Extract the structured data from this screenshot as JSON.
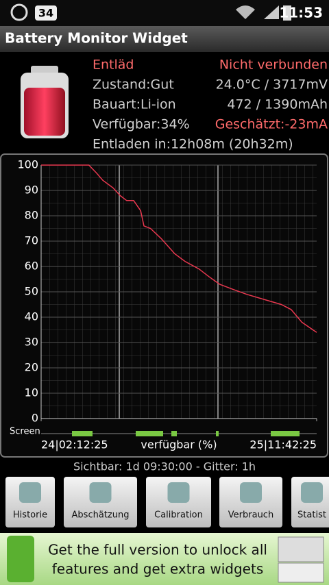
{
  "status_bar": {
    "badge": "34",
    "time": "11:53"
  },
  "app_bar": {
    "title": "Battery Monitor Widget"
  },
  "info": {
    "rows": [
      [
        "Entläd",
        "Nicht verbunden"
      ],
      [
        "Zustand:Gut",
        "24.0°C / 3717mV"
      ],
      [
        "Bauart:Li-ion",
        "472 / 1390mAh"
      ],
      [
        "Verfügbar:34%",
        "Geschätzt:-23mA"
      ]
    ],
    "footer": "Entladen in:12h08m (20h32m)"
  },
  "chart_data": {
    "type": "line",
    "x_label": "verfügbar (%)",
    "track_label": "Screen",
    "x": [
      0,
      5.8,
      6.7,
      7.5,
      8.75,
      9.6,
      10.4,
      11.25,
      12.1,
      12.5,
      13.3,
      14.6,
      16.25,
      17.5,
      19.2,
      20.4,
      21.7,
      23.3,
      25,
      27.1,
      29.2,
      30.4,
      31.7,
      33.5
    ],
    "series": [
      {
        "color": "#e8384f",
        "values": [
          100,
          100,
          97,
          94,
          91,
          88,
          86,
          86,
          82,
          76,
          75,
          71,
          65,
          62,
          59,
          56,
          53,
          51,
          49,
          47,
          45,
          43,
          38,
          34
        ]
      }
    ],
    "xlim": [
      0,
      33.5
    ],
    "xticks": [
      {
        "value": 0,
        "label": "24|02:12:25"
      },
      {
        "value": 33.5,
        "label": "25|11:42:25"
      }
    ],
    "ylim": [
      0,
      100
    ],
    "yticks": [
      0,
      10,
      20,
      30,
      40,
      50,
      60,
      70,
      80,
      90,
      100
    ],
    "grid": true
  },
  "caption": "Sichtbar: 1d 09:30:00 - Gitter: 1h",
  "buttons": [
    "Historie",
    "Abschätzung",
    "Calibration",
    "Verbrauch",
    "Statist"
  ],
  "banner": {
    "lines": [
      "Get the full version to unlock all",
      "features and get extra widgets"
    ]
  }
}
